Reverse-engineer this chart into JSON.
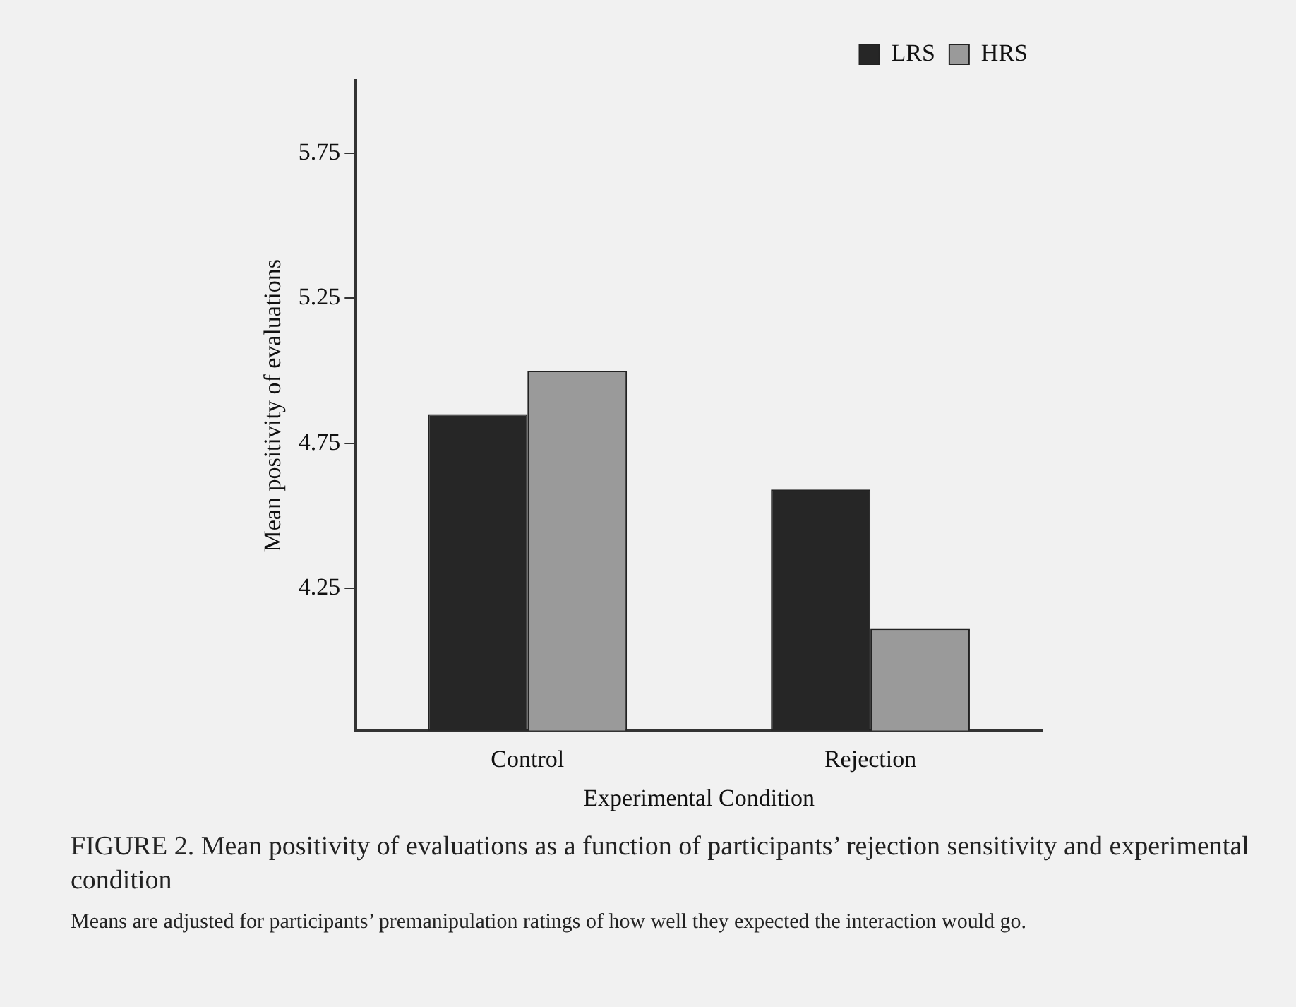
{
  "chart_data": {
    "type": "bar",
    "title": "FIGURE 2. Mean positivity of evaluations as a function of participants’ rejection sensitivity and experimental condition",
    "xlabel": "Experimental Condition",
    "ylabel": "Mean positivity of evaluations",
    "categories": [
      "Control",
      "Rejection"
    ],
    "series": [
      {
        "name": "LRS",
        "color": "#262626",
        "values": [
          4.85,
          4.59
        ]
      },
      {
        "name": "HRS",
        "color": "#9a9a9a",
        "values": [
          5.0,
          4.11
        ]
      }
    ],
    "ylim": [
      3.76,
      6.0
    ],
    "yticks": [
      4.25,
      4.75,
      5.25,
      5.75
    ],
    "grid": false,
    "legend": "top right",
    "annotations": [
      "Means are adjusted for participants’ premanipulation ratings of how well they expected the interaction would go."
    ]
  }
}
